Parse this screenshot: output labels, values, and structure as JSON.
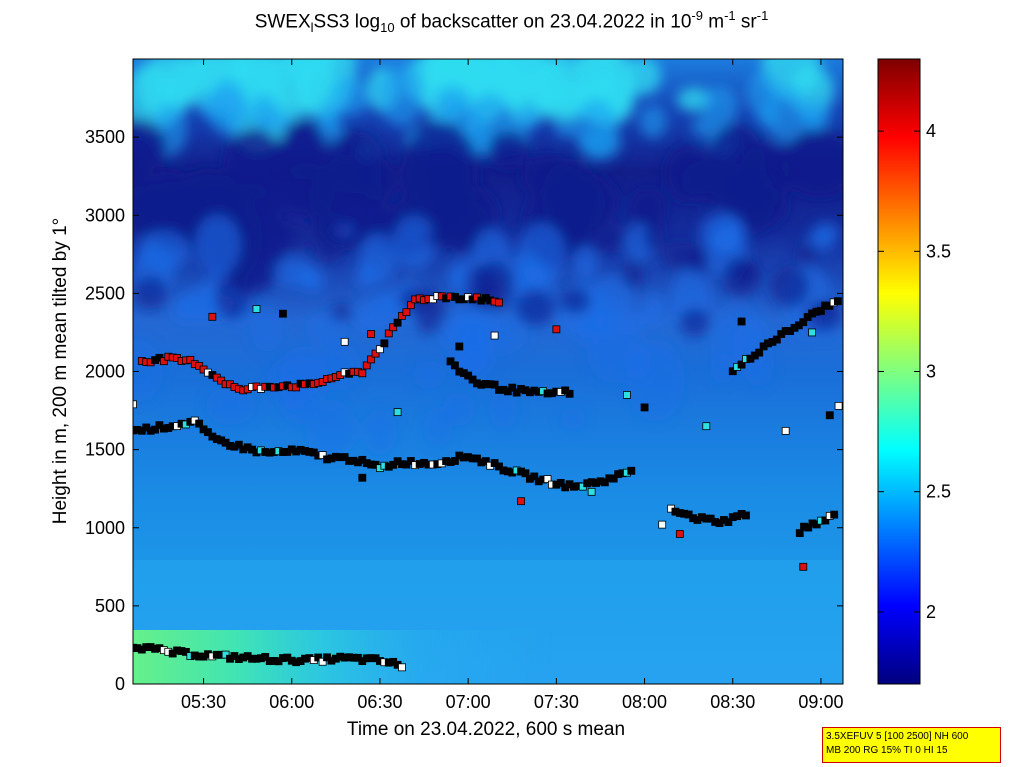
{
  "chart_data": {
    "type": "heatmap",
    "title": {
      "part1": "SWEX",
      "sub1": "l",
      "part2": "SS3 log",
      "sub2": "10",
      "part3": " of backscatter on 23.04.2022 in 10",
      "sup1": "-9",
      "part4": " m",
      "sup2": "-1",
      "part5": " sr",
      "sup3": "-1"
    },
    "xlabel": "Time on 23.04.2022, 600 s mean",
    "ylabel": "Height in m, 200 m mean tilted by 1°",
    "x_ticks": [
      "05:30",
      "06:00",
      "06:30",
      "07:00",
      "07:30",
      "08:00",
      "08:30",
      "09:00"
    ],
    "y_ticks": [
      "0",
      "500",
      "1000",
      "1500",
      "2000",
      "2500",
      "3000",
      "3500"
    ],
    "xlim_hours": [
      5.1,
      9.125
    ],
    "ylim": [
      0,
      4000
    ],
    "colorbar": {
      "ticks": [
        "2",
        "2.5",
        "3",
        "3.5",
        "4"
      ],
      "range": [
        1.7,
        4.3
      ]
    },
    "colors": {
      "dark_blue": "#101c8c",
      "mid_blue": "#1c6ee8",
      "light_blue": "#1c9ef0",
      "cyan": "#30dcf0",
      "green": "#5cf090"
    },
    "markers": {
      "line_0200": [
        [
          5.1,
          245
        ],
        [
          5.3,
          205
        ],
        [
          5.5,
          185
        ],
        [
          5.7,
          170
        ],
        [
          5.9,
          158
        ],
        [
          6.1,
          152
        ],
        [
          6.3,
          165
        ],
        [
          6.5,
          150
        ],
        [
          6.65,
          110
        ]
      ],
      "line_1500": [
        [
          5.1,
          1620
        ],
        [
          5.3,
          1650
        ],
        [
          5.45,
          1680
        ],
        [
          5.55,
          1570
        ],
        [
          5.7,
          1520
        ],
        [
          5.85,
          1480
        ],
        [
          6.05,
          1490
        ],
        [
          6.2,
          1450
        ],
        [
          6.35,
          1440
        ],
        [
          6.5,
          1380
        ],
        [
          6.6,
          1420
        ],
        [
          6.8,
          1410
        ],
        [
          7.0,
          1460
        ],
        [
          7.2,
          1380
        ],
        [
          7.4,
          1310
        ],
        [
          7.6,
          1260
        ],
        [
          7.8,
          1310
        ],
        [
          7.95,
          1380
        ]
      ],
      "line_2050": [
        [
          5.15,
          2070
        ],
        [
          5.3,
          2080
        ],
        [
          5.45,
          2060
        ],
        [
          5.55,
          1980
        ],
        [
          5.7,
          1880
        ],
        [
          5.9,
          1910
        ],
        [
          6.1,
          1910
        ],
        [
          6.25,
          1970
        ],
        [
          6.4,
          2000
        ],
        [
          6.55,
          2230
        ],
        [
          6.7,
          2460
        ],
        [
          6.85,
          2480
        ],
        [
          7.05,
          2470
        ],
        [
          7.2,
          2440
        ]
      ],
      "line_1900": [
        [
          6.9,
          2050
        ],
        [
          7.05,
          1930
        ],
        [
          7.2,
          1890
        ],
        [
          7.4,
          1860
        ],
        [
          7.6,
          1870
        ]
      ],
      "line_1000": [
        [
          8.15,
          1110
        ],
        [
          8.3,
          1060
        ],
        [
          8.45,
          1040
        ],
        [
          8.6,
          1100
        ]
      ],
      "line_2200": [
        [
          8.5,
          2000
        ],
        [
          8.7,
          2180
        ],
        [
          8.85,
          2280
        ],
        [
          9.0,
          2400
        ],
        [
          9.12,
          2460
        ]
      ],
      "line_1050b": [
        [
          8.88,
          980
        ],
        [
          9.0,
          1040
        ],
        [
          9.1,
          1090
        ]
      ],
      "scatter": [
        [
          5.1,
          1790
        ],
        [
          5.55,
          2350
        ],
        [
          5.8,
          2400
        ],
        [
          5.95,
          2370
        ],
        [
          6.3,
          2190
        ],
        [
          6.45,
          2240
        ],
        [
          6.6,
          1740
        ],
        [
          6.95,
          2160
        ],
        [
          7.15,
          2230
        ],
        [
          7.5,
          2270
        ],
        [
          7.9,
          1850
        ],
        [
          8.0,
          1770
        ],
        [
          8.1,
          1020
        ],
        [
          8.2,
          960
        ],
        [
          8.35,
          1650
        ],
        [
          8.55,
          2320
        ],
        [
          8.8,
          1620
        ],
        [
          8.9,
          750
        ],
        [
          8.95,
          2250
        ],
        [
          9.05,
          1720
        ],
        [
          9.1,
          1780
        ],
        [
          7.3,
          1170
        ],
        [
          7.7,
          1230
        ],
        [
          6.4,
          1320
        ]
      ]
    }
  },
  "info_box": {
    "line1": "3.5XEFUV 5 [100 2500] NH 600",
    "line2": "MB 200 RG 15% TI 0 HI 15"
  }
}
